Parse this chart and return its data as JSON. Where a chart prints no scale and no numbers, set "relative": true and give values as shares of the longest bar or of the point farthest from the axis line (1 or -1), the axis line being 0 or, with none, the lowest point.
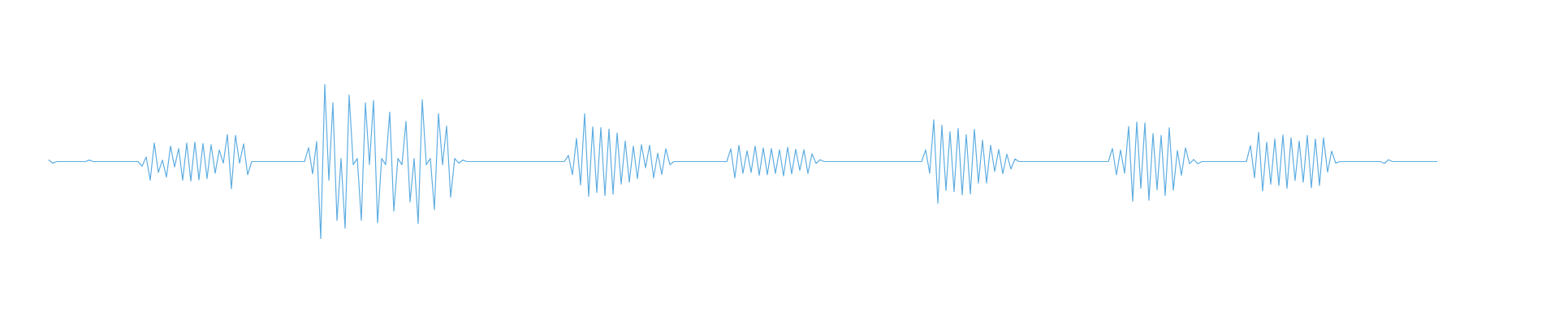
{
  "chart_data": {
    "type": "line",
    "relative": true,
    "color": "#5dade2",
    "categories": [
      null,
      null,
      null,
      null,
      null,
      null,
      null,
      null,
      null,
      null,
      null,
      null,
      null,
      null,
      null,
      null,
      null,
      null,
      null,
      null,
      null,
      null,
      null,
      null,
      null,
      null,
      null,
      null,
      null,
      null,
      null,
      null,
      null,
      null,
      null,
      null,
      null,
      null,
      null,
      null,
      null,
      null,
      null,
      null,
      null,
      null,
      null,
      null,
      null,
      null,
      null,
      null,
      null,
      null,
      null,
      null,
      null,
      null,
      null,
      null,
      null,
      null,
      null,
      null,
      null,
      null,
      null,
      null,
      null,
      null,
      null,
      null,
      null,
      null,
      null,
      null,
      null,
      null,
      null,
      null,
      null,
      null,
      null,
      null,
      null,
      null,
      null,
      null,
      null,
      null,
      null,
      null,
      null,
      null,
      null,
      null,
      null,
      null,
      null,
      null,
      null,
      null,
      null,
      null,
      null,
      null,
      null,
      null,
      null,
      null,
      null,
      null,
      null,
      null,
      null,
      null,
      null,
      null,
      null,
      null,
      null,
      null,
      null,
      null,
      null,
      null,
      null,
      null,
      null,
      null,
      null,
      null,
      null,
      null,
      null,
      null,
      null,
      null,
      null,
      null,
      null,
      null,
      null,
      null,
      null,
      null,
      null,
      null,
      null,
      null,
      null,
      null,
      null,
      null,
      null,
      null,
      null,
      null,
      null,
      null,
      null,
      null,
      null,
      null,
      null,
      null,
      null,
      null,
      null,
      null,
      null,
      null,
      null,
      null,
      null,
      null,
      null,
      null,
      null,
      null,
      null,
      null,
      null,
      null,
      null,
      null,
      null,
      null,
      null,
      null,
      null,
      null,
      null,
      null,
      null,
      null,
      null,
      null,
      null,
      null,
      null,
      null,
      null,
      null,
      null,
      null,
      null,
      null,
      null,
      null,
      null,
      null,
      null,
      null,
      null,
      null,
      null,
      null,
      null,
      null,
      null,
      null,
      null,
      null,
      null,
      null,
      null,
      null,
      null,
      null,
      null,
      null,
      null,
      null,
      null,
      null,
      null,
      null,
      null,
      null,
      null,
      null,
      null,
      null,
      null,
      null,
      null,
      null,
      null,
      null,
      null,
      null,
      null,
      null,
      null,
      null,
      null,
      null,
      null,
      null,
      null,
      null,
      null,
      null,
      null,
      null,
      null,
      null,
      null,
      null,
      null,
      null,
      null,
      null,
      null,
      null,
      null,
      null,
      null,
      null,
      null,
      null,
      null,
      null,
      null,
      null,
      null,
      null,
      null,
      null,
      null,
      null,
      null,
      null,
      null,
      null,
      null,
      null,
      null,
      null,
      null,
      null,
      null,
      null,
      null,
      null,
      null,
      null,
      null,
      null,
      null,
      null,
      null,
      null,
      null,
      null,
      null,
      null,
      null,
      null,
      null,
      null,
      null,
      null,
      null,
      null,
      null,
      null,
      null,
      null,
      null,
      null,
      null,
      null,
      null,
      null,
      null,
      null,
      null,
      null,
      null,
      null,
      null
    ],
    "values": [
      0.51,
      0.49,
      0.5,
      0.5,
      0.5,
      0.5,
      0.5,
      0.5,
      0.5,
      0.5,
      0.51,
      0.5,
      0.5,
      0.5,
      0.5,
      0.5,
      0.5,
      0.5,
      0.5,
      0.5,
      0.5,
      0.5,
      0.5,
      0.47,
      0.53,
      0.38,
      0.62,
      0.43,
      0.51,
      0.4,
      0.6,
      0.465,
      0.585,
      0.38,
      0.62,
      0.375,
      0.625,
      0.383,
      0.617,
      0.39,
      0.61,
      0.425,
      0.575,
      0.49,
      0.675,
      0.325,
      0.67,
      0.49,
      0.615,
      0.415,
      0.5,
      0.5,
      0.5,
      0.5,
      0.5,
      0.5,
      0.5,
      0.5,
      0.5,
      0.5,
      0.5,
      0.5,
      0.5,
      0.5,
      0.59,
      0.42,
      0.63,
      0,
      1,
      0.38,
      0.88,
      0.12,
      0.52,
      0.07,
      0.93,
      0.48,
      0.52,
      0.12,
      0.88,
      0.48,
      0.895,
      0.105,
      0.52,
      0.48,
      0.82,
      0.18,
      0.52,
      0.48,
      0.76,
      0.24,
      0.52,
      0.1,
      0.9,
      0.48,
      0.52,
      0.19,
      0.81,
      0.48,
      0.73,
      0.27,
      0.52,
      0.49,
      0.51,
      0.5,
      0.5,
      0.5,
      0.5,
      0.5,
      0.5,
      0.5,
      0.5,
      0.5,
      0.5,
      0.5,
      0.5,
      0.5,
      0.5,
      0.5,
      0.5,
      0.5,
      0.5,
      0.5,
      0.5,
      0.5,
      0.5,
      0.5,
      0.5,
      0.5,
      0.54,
      0.415,
      0.65,
      0.35,
      0.81,
      0.275,
      0.725,
      0.3,
      0.72,
      0.28,
      0.71,
      0.29,
      0.685,
      0.355,
      0.633,
      0.367,
      0.6,
      0.39,
      0.61,
      0.46,
      0.606,
      0.394,
      0.555,
      0.417,
      0.583,
      0.48,
      0.5,
      0.5,
      0.5,
      0.5,
      0.5,
      0.5,
      0.5,
      0.5,
      0.5,
      0.5,
      0.5,
      0.5,
      0.5,
      0.5,
      0.583,
      0.394,
      0.606,
      0.424,
      0.57,
      0.43,
      0.6,
      0.412,
      0.588,
      0.416,
      0.584,
      0.423,
      0.577,
      0.407,
      0.593,
      0.421,
      0.579,
      0.443,
      0.577,
      0.423,
      0.551,
      0.488,
      0.512,
      0.5,
      0.5,
      0.5,
      0.5,
      0.5,
      0.5,
      0.5,
      0.5,
      0.5,
      0.5,
      0.5,
      0.5,
      0.5,
      0.5,
      0.5,
      0.5,
      0.5,
      0.5,
      0.5,
      0.5,
      0.5,
      0.5,
      0.5,
      0.5,
      0.5,
      0.575,
      0.425,
      0.77,
      0.23,
      0.735,
      0.314,
      0.693,
      0.307,
      0.714,
      0.286,
      0.675,
      0.291,
      0.709,
      0.361,
      0.638,
      0.362,
      0.606,
      0.436,
      0.578,
      0.422,
      0.548,
      0.452,
      0.517,
      0.5,
      0.5,
      0.5,
      0.5,
      0.5,
      0.5,
      0.5,
      0.5,
      0.5,
      0.5,
      0.5,
      0.5,
      0.5,
      0.5,
      0.5,
      0.5,
      0.5,
      0.5,
      0.5,
      0.5,
      0.5,
      0.5,
      0.5,
      0.585,
      0.415,
      0.575,
      0.425,
      0.727,
      0.244,
      0.756,
      0.328,
      0.75,
      0.25,
      0.682,
      0.318,
      0.669,
      0.281,
      0.719,
      0.315,
      0.572,
      0.412,
      0.588,
      0.486,
      0.514,
      0.486,
      0.5,
      0.5,
      0.5,
      0.5,
      0.5,
      0.5,
      0.5,
      0.5,
      0.5,
      0.5,
      0.5,
      0.5,
      0.604,
      0.396,
      0.69,
      0.31,
      0.625,
      0.354,
      0.646,
      0.346,
      0.672,
      0.328,
      0.654,
      0.378,
      0.633,
      0.367,
      0.669,
      0.331,
      0.646,
      0.346,
      0.654,
      0.432,
      0.568,
      0.49,
      0.5,
      0.5,
      0.5,
      0.5,
      0.5,
      0.5,
      0.5,
      0.5,
      0.5,
      0.5,
      0.5,
      0.488,
      0.512,
      0.5,
      0.5,
      0.5,
      0.5,
      0.5,
      0.5,
      0.5,
      0.5,
      0.5,
      0.5,
      0.5,
      0.5
    ]
  }
}
